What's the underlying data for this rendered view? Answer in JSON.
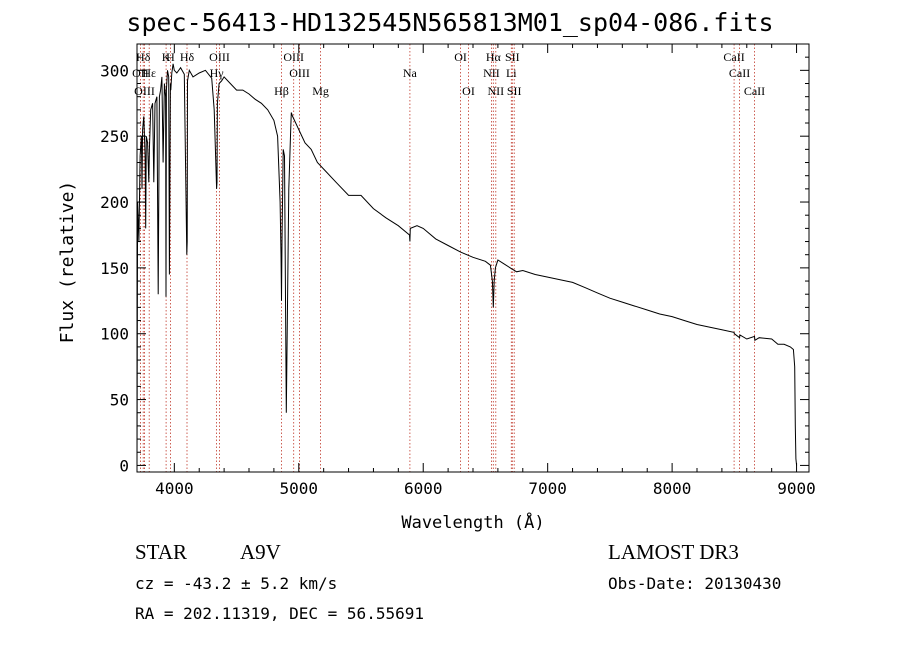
{
  "chart_data": {
    "type": "line",
    "title": "spec-56413-HD132545N565813M01_sp04-086.fits",
    "xlabel": "Wavelength (Å)",
    "ylabel": "Flux (relative)",
    "xlim": [
      3700,
      9100
    ],
    "ylim": [
      -5,
      320
    ],
    "xticks": [
      4000,
      5000,
      6000,
      7000,
      8000,
      9000
    ],
    "yticks": [
      0,
      50,
      100,
      150,
      200,
      250,
      300
    ],
    "grid": false,
    "series": [
      {
        "name": "flux",
        "x": [
          3700,
          3705,
          3715,
          3725,
          3735,
          3740,
          3745,
          3755,
          3765,
          3770,
          3775,
          3785,
          3795,
          3800,
          3810,
          3825,
          3835,
          3845,
          3860,
          3870,
          3880,
          3890,
          3900,
          3910,
          3920,
          3930,
          3933,
          3936,
          3945,
          3955,
          3960,
          3968,
          3972,
          3980,
          3990,
          4000,
          4020,
          4050,
          4080,
          4100,
          4103,
          4106,
          4120,
          4150,
          4200,
          4250,
          4300,
          4320,
          4340,
          4343,
          4346,
          4360,
          4380,
          4400,
          4450,
          4500,
          4550,
          4600,
          4650,
          4700,
          4750,
          4800,
          4830,
          4850,
          4857,
          4861,
          4865,
          4875,
          4885,
          4900,
          4920,
          4935,
          4940,
          4950,
          5000,
          5050,
          5100,
          5150,
          5200,
          5300,
          5400,
          5500,
          5600,
          5700,
          5800,
          5890,
          5893,
          5896,
          5950,
          6000,
          6100,
          6200,
          6300,
          6400,
          6500,
          6540,
          6556,
          6563,
          6570,
          6580,
          6600,
          6650,
          6700,
          6750,
          6800,
          6900,
          7000,
          7100,
          7200,
          7300,
          7400,
          7500,
          7600,
          7700,
          7800,
          7900,
          8000,
          8100,
          8200,
          8300,
          8400,
          8498,
          8500,
          8542,
          8545,
          8600,
          8662,
          8665,
          8700,
          8800,
          8850,
          8900,
          8950,
          8975,
          8985,
          8990,
          8995,
          9000
        ],
        "values": [
          0,
          200,
          170,
          235,
          250,
          210,
          255,
          265,
          235,
          180,
          250,
          245,
          215,
          240,
          270,
          275,
          215,
          275,
          280,
          130,
          280,
          285,
          295,
          230,
          290,
          280,
          128,
          285,
          300,
          295,
          145,
          290,
          285,
          298,
          305,
          300,
          298,
          302,
          297,
          160,
          170,
          292,
          300,
          295,
          298,
          300,
          294,
          270,
          210,
          215,
          275,
          290,
          292,
          295,
          290,
          285,
          285,
          282,
          278,
          275,
          270,
          262,
          250,
          200,
          160,
          125,
          170,
          240,
          235,
          40,
          210,
          255,
          268,
          265,
          255,
          245,
          240,
          230,
          225,
          215,
          205,
          205,
          195,
          188,
          182,
          175,
          170,
          180,
          182,
          180,
          172,
          167,
          162,
          158,
          155,
          152,
          140,
          120,
          140,
          150,
          156,
          153,
          150,
          147,
          148,
          145,
          143,
          141,
          139,
          135,
          131,
          127,
          124,
          121,
          118,
          115,
          113,
          110,
          107,
          105,
          103,
          101,
          100,
          97,
          99,
          96,
          98,
          95,
          97,
          96,
          92,
          92,
          90,
          88,
          75,
          30,
          5,
          0
        ]
      }
    ],
    "lines": [
      {
        "label": "Hδ",
        "wl": 3750
      },
      {
        "label": "OII",
        "wl": 3727
      },
      {
        "label": "OIII",
        "wl": 3760
      },
      {
        "label": "Hε",
        "wl": 3798
      },
      {
        "label": "K",
        "wl": 3934
      },
      {
        "label": "H",
        "wl": 3969
      },
      {
        "label": "Hδ",
        "wl": 4102
      },
      {
        "label": "Hγ",
        "wl": 4340
      },
      {
        "label": "OIII",
        "wl": 4363
      },
      {
        "label": "Hβ",
        "wl": 4861
      },
      {
        "label": "OIII",
        "wl": 4959
      },
      {
        "label": "OIII",
        "wl": 5007
      },
      {
        "label": "Mg",
        "wl": 5175
      },
      {
        "label": "Na",
        "wl": 5893
      },
      {
        "label": "OI",
        "wl": 6300
      },
      {
        "label": "OI",
        "wl": 6364
      },
      {
        "label": "NII",
        "wl": 6548
      },
      {
        "label": "Hα",
        "wl": 6563
      },
      {
        "label": "NII",
        "wl": 6583
      },
      {
        "label": "Li",
        "wl": 6708
      },
      {
        "label": "SII",
        "wl": 6716
      },
      {
        "label": "SII",
        "wl": 6731
      },
      {
        "label": "CaII",
        "wl": 8498
      },
      {
        "label": "CaII",
        "wl": 8542
      },
      {
        "label": "CaII",
        "wl": 8662
      }
    ]
  },
  "info": {
    "object_class": "STAR",
    "subclass": "A9V",
    "survey": "LAMOST DR3",
    "redshift": "cz = -43.2 ± 5.2 km/s",
    "obs_date": "Obs-Date: 20130430",
    "coords": "RA = 202.11319, DEC =  56.55691"
  },
  "colors": {
    "axis": "#000000",
    "spectrum": "#000000",
    "line_marker": "#c0392b"
  }
}
